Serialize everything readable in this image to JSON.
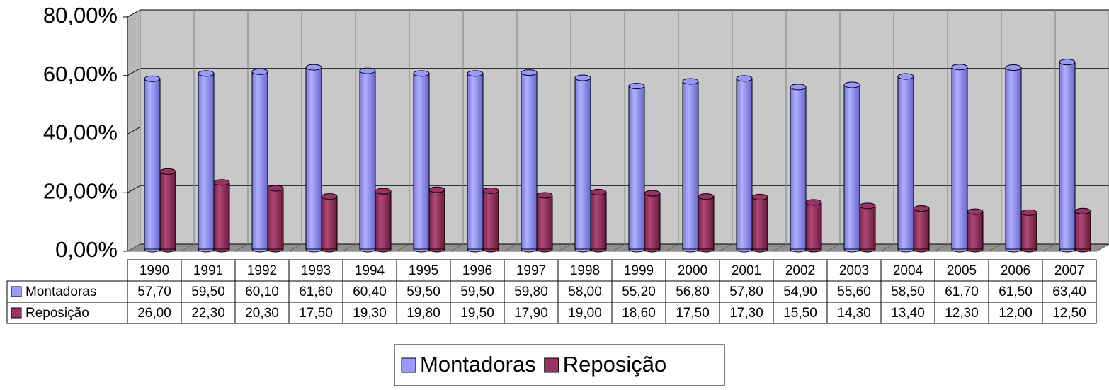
{
  "chart_data": {
    "type": "bar3d",
    "categories": [
      "1990",
      "1991",
      "1992",
      "1993",
      "1994",
      "1995",
      "1996",
      "1997",
      "1998",
      "1999",
      "2000",
      "2001",
      "2002",
      "2003",
      "2004",
      "2005",
      "2006",
      "2007"
    ],
    "series": [
      {
        "name": "Montadoras",
        "color": "#9999ff",
        "values": [
          57.7,
          59.5,
          60.1,
          61.6,
          60.4,
          59.5,
          59.5,
          59.8,
          58.0,
          55.2,
          56.8,
          57.8,
          54.9,
          55.6,
          58.5,
          61.7,
          61.5,
          63.4
        ],
        "value_labels": [
          "57,70",
          "59,50",
          "60,10",
          "61,60",
          "60,40",
          "59,50",
          "59,50",
          "59,80",
          "58,00",
          "55,20",
          "56,80",
          "57,80",
          "54,90",
          "55,60",
          "58,50",
          "61,70",
          "61,50",
          "63,40"
        ]
      },
      {
        "name": "Reposição",
        "color": "#993366",
        "values": [
          26.0,
          22.3,
          20.3,
          17.5,
          19.3,
          19.8,
          19.5,
          17.9,
          19.0,
          18.6,
          17.5,
          17.3,
          15.5,
          14.3,
          13.4,
          12.3,
          12.0,
          12.5
        ],
        "value_labels": [
          "26,00",
          "22,30",
          "20,30",
          "17,50",
          "19,30",
          "19,80",
          "19,50",
          "17,90",
          "19,00",
          "18,60",
          "17,50",
          "17,30",
          "15,50",
          "14,30",
          "13,40",
          "12,30",
          "12,00",
          "12,50"
        ]
      }
    ],
    "ylim": [
      0,
      80
    ],
    "yticks": [
      {
        "value": 0,
        "label": "0,00%"
      },
      {
        "value": 20,
        "label": "20,00%"
      },
      {
        "value": 40,
        "label": "40,00%"
      },
      {
        "value": 60,
        "label": "60,00%"
      },
      {
        "value": 80,
        "label": "80,00%"
      }
    ],
    "grid": true,
    "legend": "bottom",
    "data_table": true
  }
}
